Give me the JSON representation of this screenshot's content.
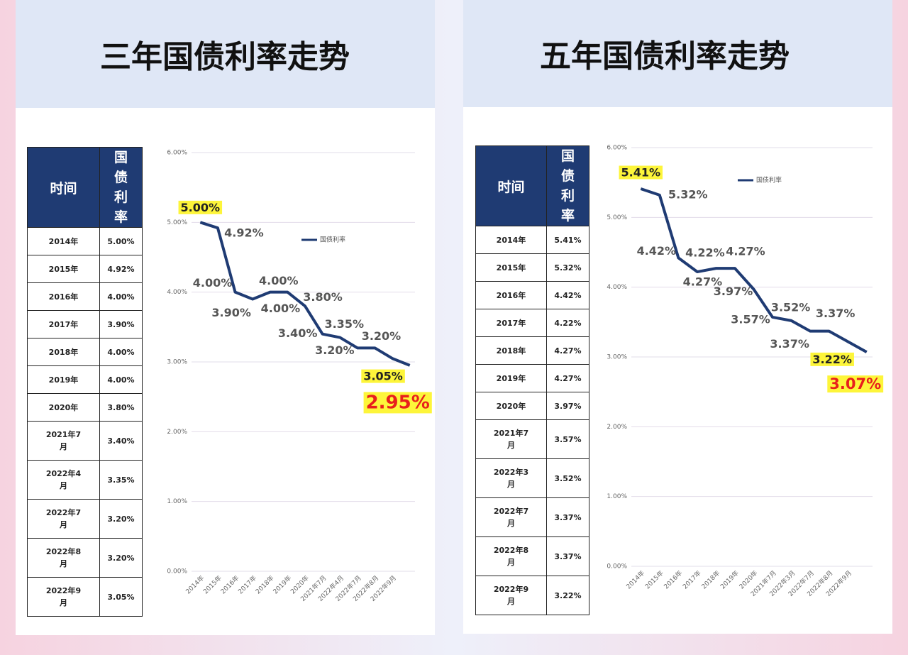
{
  "chart_data": [
    {
      "type": "line",
      "title": "三年国债利率走势",
      "categories": [
        "2014年",
        "2015年",
        "2016年",
        "2017年",
        "2018年",
        "2019年",
        "2020年",
        "2021年7月",
        "2022年4月",
        "2022年7月",
        "2022年8月",
        "2022年9月",
        null
      ],
      "series": [
        {
          "name": "国债利率",
          "color": "#1f3b73",
          "values": [
            5.0,
            4.92,
            4.0,
            3.9,
            4.0,
            4.0,
            3.8,
            3.4,
            3.35,
            3.2,
            3.2,
            3.05,
            2.95
          ],
          "value_labels": [
            "5.00%",
            "4.92%",
            "4.00%",
            "3.90%",
            "4.00%",
            "4.00%",
            "3.80%",
            "3.40%",
            "3.35%",
            "3.20%",
            "3.20%",
            "3.05%",
            "2.95%"
          ]
        }
      ],
      "ylim": [
        0,
        6
      ],
      "yticks": [
        {
          "value": 0,
          "label": "0.00%"
        },
        {
          "value": 1,
          "label": "1.00%"
        },
        {
          "value": 2,
          "label": "2.00%"
        },
        {
          "value": 3,
          "label": "3.00%"
        },
        {
          "value": 4,
          "label": "4.00%"
        },
        {
          "value": 5,
          "label": "5.00%"
        },
        {
          "value": 6,
          "label": "6.00%"
        }
      ],
      "grid": true,
      "legend": "upper right"
    },
    {
      "type": "line",
      "title": "五年国债利率走势",
      "categories": [
        "2014年",
        "2015年",
        "2016年",
        "2017年",
        "2018年",
        "2019年",
        "2020年",
        "2021年7月",
        "2022年3月",
        "2022年7月",
        "2022年8月",
        "2022年9月",
        null
      ],
      "series": [
        {
          "name": "国债利率",
          "color": "#1f3b73",
          "values": [
            5.41,
            5.32,
            4.42,
            4.22,
            4.27,
            4.27,
            3.97,
            3.57,
            3.52,
            3.37,
            3.37,
            3.22,
            3.07
          ],
          "value_labels": [
            "5.41%",
            "5.32%",
            "4.42%",
            "4.22%",
            "4.27%",
            "4.27%",
            "3.97%",
            "3.57%",
            "3.52%",
            "3.37%",
            "3.37%",
            "3.22%",
            "3.07%"
          ]
        }
      ],
      "ylim": [
        0,
        6
      ],
      "yticks": [
        {
          "value": 0,
          "label": "0.00%"
        },
        {
          "value": 1,
          "label": "1.00%"
        },
        {
          "value": 2,
          "label": "2.00%"
        },
        {
          "value": 3,
          "label": "3.00%"
        },
        {
          "value": 4,
          "label": "4.00%"
        },
        {
          "value": 5,
          "label": "5.00%"
        },
        {
          "value": 6,
          "label": "6.00%"
        }
      ],
      "grid": true,
      "legend": "upper right"
    }
  ],
  "tables": [
    {
      "header": [
        "时间",
        "国债利率"
      ],
      "rows": [
        [
          "2014年",
          "5.00%"
        ],
        [
          "2015年",
          "4.92%"
        ],
        [
          "2016年",
          "4.00%"
        ],
        [
          "2017年",
          "3.90%"
        ],
        [
          "2018年",
          "4.00%"
        ],
        [
          "2019年",
          "4.00%"
        ],
        [
          "2020年",
          "3.80%"
        ],
        [
          "2021年7月",
          "3.40%"
        ],
        [
          "2022年4月",
          "3.35%"
        ],
        [
          "2022年7月",
          "3.20%"
        ],
        [
          "2022年8月",
          "3.20%"
        ],
        [
          "2022年9月",
          "3.05%"
        ]
      ]
    },
    {
      "header": [
        "时间",
        "国债利率"
      ],
      "rows": [
        [
          "2014年",
          "5.41%"
        ],
        [
          "2015年",
          "5.32%"
        ],
        [
          "2016年",
          "4.42%"
        ],
        [
          "2017年",
          "4.22%"
        ],
        [
          "2018年",
          "4.27%"
        ],
        [
          "2019年",
          "4.27%"
        ],
        [
          "2020年",
          "3.97%"
        ],
        [
          "2021年7月",
          "3.57%"
        ],
        [
          "2022年3月",
          "3.52%"
        ],
        [
          "2022年7月",
          "3.37%"
        ],
        [
          "2022年8月",
          "3.37%"
        ],
        [
          "2022年9月",
          "3.22%"
        ]
      ]
    }
  ]
}
